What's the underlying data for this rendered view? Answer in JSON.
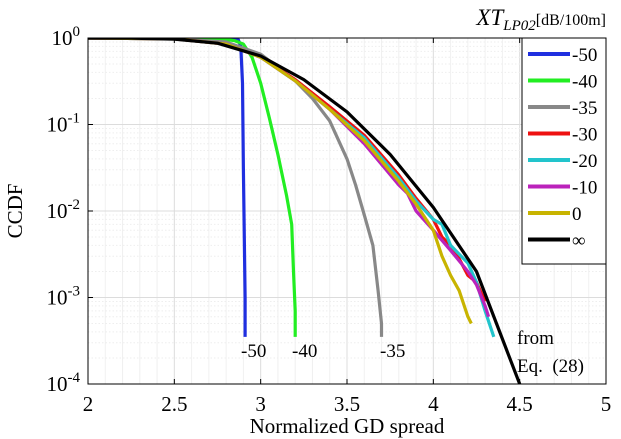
{
  "chart_data": {
    "type": "line",
    "xlabel": "Normalized GD spread",
    "ylabel": "CCDF",
    "xlim": [
      2,
      5
    ],
    "ylim": [
      0.0001,
      1
    ],
    "yscale": "log",
    "grid": true,
    "legend_title_main": "XT",
    "legend_title_sub": "LP02",
    "legend_title_unit": "[dB/100m]",
    "legend_placement": "right",
    "x_ticks": [
      "2",
      "2.5",
      "3",
      "3.5",
      "4",
      "4.5",
      "5"
    ],
    "y_ticks": [
      {
        "base": "10",
        "exp": "0"
      },
      {
        "base": "10",
        "exp": "-1"
      },
      {
        "base": "10",
        "exp": "-2"
      },
      {
        "base": "10",
        "exp": "-3"
      },
      {
        "base": "10",
        "exp": "-4"
      }
    ],
    "annotations": [
      "-50",
      "-40",
      "-35",
      "from",
      "Eq.  (28)"
    ],
    "series": [
      {
        "name": "-50",
        "color": "#1f2fe0",
        "x": [
          2.0,
          2.5,
          2.75,
          2.84,
          2.87,
          2.885,
          2.895,
          2.9,
          2.905,
          2.91,
          2.91
        ],
        "y": [
          1.0,
          1.0,
          0.995,
          0.99,
          0.96,
          0.8,
          0.3,
          0.03,
          0.005,
          0.001,
          0.00035
        ]
      },
      {
        "name": "-40",
        "color": "#22ee22",
        "x": [
          2.0,
          2.5,
          2.8,
          2.85,
          2.9,
          2.95,
          3.0,
          3.05,
          3.1,
          3.15,
          3.18,
          3.19,
          3.2,
          3.2
        ],
        "y": [
          1.0,
          0.98,
          0.96,
          0.93,
          0.85,
          0.6,
          0.3,
          0.12,
          0.045,
          0.015,
          0.007,
          0.002,
          0.0007,
          0.00035
        ]
      },
      {
        "name": "-35",
        "color": "#888888",
        "x": [
          2.0,
          2.5,
          2.8,
          3.0,
          3.2,
          3.3,
          3.4,
          3.5,
          3.55,
          3.6,
          3.65,
          3.68,
          3.7,
          3.7
        ],
        "y": [
          1.0,
          0.98,
          0.9,
          0.65,
          0.32,
          0.2,
          0.11,
          0.04,
          0.02,
          0.009,
          0.004,
          0.0012,
          0.0005,
          0.00035
        ]
      },
      {
        "name": "-30",
        "color": "#ee1111",
        "x": [
          2.0,
          2.5,
          2.8,
          3.0,
          3.2,
          3.4,
          3.6,
          3.8,
          3.9,
          4.0,
          4.05,
          4.1,
          4.15,
          4.2,
          4.25,
          4.3
        ],
        "y": [
          1.0,
          0.98,
          0.85,
          0.6,
          0.33,
          0.16,
          0.075,
          0.026,
          0.014,
          0.008,
          0.005,
          0.004,
          0.0028,
          0.0018,
          0.0015,
          0.0009
        ]
      },
      {
        "name": "-20",
        "color": "#22c4cc",
        "x": [
          2.0,
          2.5,
          2.8,
          3.0,
          3.2,
          3.4,
          3.6,
          3.8,
          3.9,
          4.0,
          4.05,
          4.1,
          4.2,
          4.25,
          4.3,
          4.35
        ],
        "y": [
          1.0,
          0.98,
          0.85,
          0.6,
          0.32,
          0.15,
          0.07,
          0.024,
          0.013,
          0.008,
          0.007,
          0.004,
          0.0025,
          0.0015,
          0.0007,
          0.00035
        ]
      },
      {
        "name": "-10",
        "color": "#bb22bb",
        "x": [
          2.0,
          2.5,
          2.8,
          3.0,
          3.2,
          3.4,
          3.6,
          3.8,
          3.85,
          3.9,
          4.0,
          4.1,
          4.2,
          4.25,
          4.3,
          4.32
        ],
        "y": [
          1.0,
          0.98,
          0.85,
          0.6,
          0.32,
          0.15,
          0.06,
          0.02,
          0.016,
          0.01,
          0.006,
          0.0035,
          0.002,
          0.0014,
          0.0008,
          0.0006
        ]
      },
      {
        "name": "0",
        "color": "#c8b400",
        "x": [
          2.0,
          2.5,
          2.8,
          3.0,
          3.2,
          3.4,
          3.6,
          3.8,
          3.9,
          4.0,
          4.05,
          4.1,
          4.15,
          4.2,
          4.22
        ],
        "y": [
          1.0,
          0.98,
          0.85,
          0.6,
          0.32,
          0.15,
          0.065,
          0.022,
          0.012,
          0.006,
          0.003,
          0.0018,
          0.0012,
          0.0006,
          0.0005
        ]
      },
      {
        "name": "∞",
        "color": "#000000",
        "x": [
          2.0,
          2.25,
          2.5,
          2.75,
          3.0,
          3.25,
          3.5,
          3.75,
          4.0,
          4.25,
          4.5
        ],
        "y": [
          1.0,
          0.995,
          0.97,
          0.87,
          0.62,
          0.33,
          0.14,
          0.045,
          0.011,
          0.002,
          0.0001
        ]
      }
    ]
  }
}
